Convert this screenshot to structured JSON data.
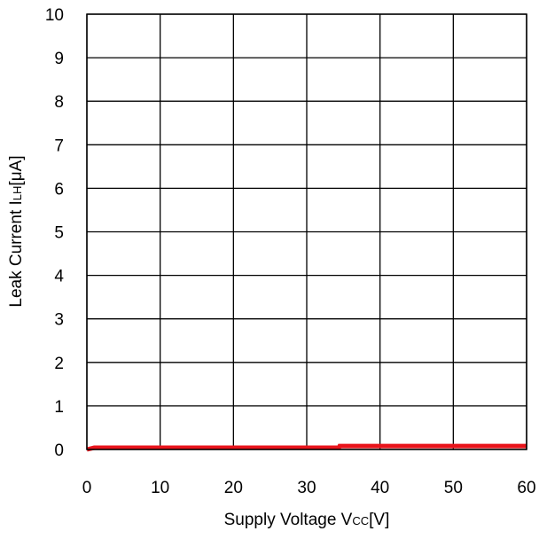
{
  "chart_data": {
    "type": "line",
    "xlabel": {
      "main": "Supply Voltage V",
      "sub": "CC",
      "unit": "[V]"
    },
    "ylabel": {
      "main": "Leak Current I",
      "sub": "LH",
      "unit": "[μA]"
    },
    "xlim": [
      0,
      60
    ],
    "ylim": [
      0,
      10
    ],
    "xticks": [
      "0",
      "10",
      "20",
      "30",
      "40",
      "50",
      "60"
    ],
    "yticks": [
      "0",
      "1",
      "2",
      "3",
      "4",
      "5",
      "6",
      "7",
      "8",
      "9",
      "10"
    ],
    "grid": true,
    "series": [
      {
        "color": "#e8141b",
        "x": [
          0,
          0.5,
          1,
          5,
          10,
          15,
          20,
          25,
          30,
          34.4,
          34.5,
          35,
          40,
          45,
          50,
          55,
          60
        ],
        "y": [
          0,
          0.02,
          0.04,
          0.04,
          0.04,
          0.04,
          0.04,
          0.04,
          0.04,
          0.04,
          0.08,
          0.08,
          0.08,
          0.08,
          0.08,
          0.08,
          0.08
        ]
      }
    ]
  }
}
